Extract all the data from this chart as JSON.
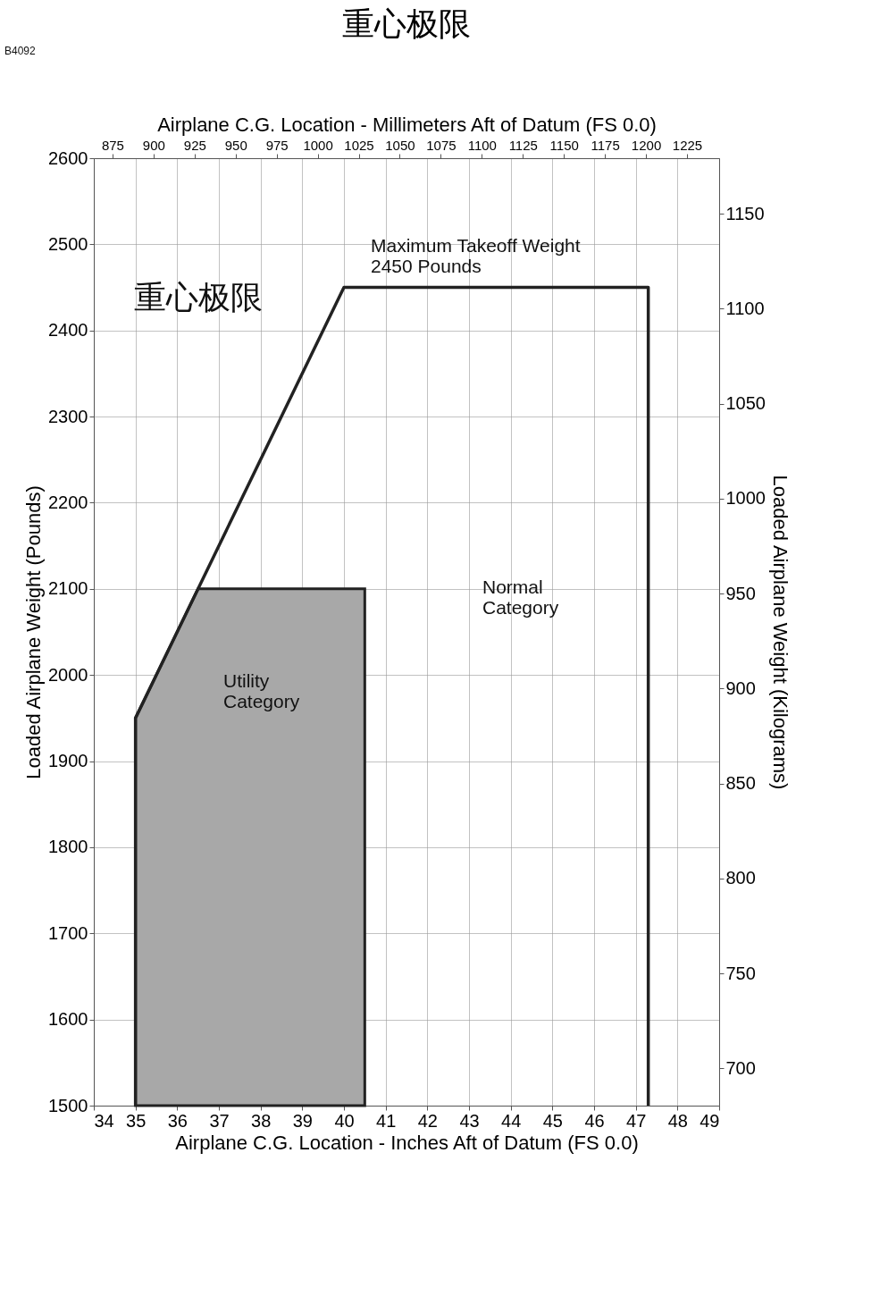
{
  "chart_data": {
    "type": "line",
    "title": "重心极限",
    "xlabel": "Airplane C.G. Location - Inches Aft of Datum (FS 0.0)",
    "ylabel": "Loaded Airplane Weight (Pounds)",
    "x2label": "Airplane C.G. Location - Millimeters Aft of Datum (FS 0.0)",
    "y2label": "Loaded Airplane Weight (Kilograms)",
    "xlim": [
      34,
      49
    ],
    "xticks": [
      34,
      35,
      36,
      37,
      38,
      39,
      40,
      41,
      42,
      43,
      44,
      45,
      46,
      47,
      48,
      49
    ],
    "ylim": [
      1500,
      2600
    ],
    "yticks": [
      1500,
      1600,
      1700,
      1800,
      1900,
      2000,
      2100,
      2200,
      2300,
      2400,
      2500,
      2600
    ],
    "x2lim": [
      863.6,
      1244.6
    ],
    "x2ticks": [
      875,
      900,
      925,
      950,
      975,
      1000,
      1025,
      1050,
      1075,
      1100,
      1125,
      1150,
      1175,
      1200,
      1225
    ],
    "y2lim": [
      680.4,
      1179.3
    ],
    "y2ticks": [
      700,
      750,
      800,
      850,
      900,
      950,
      1000,
      1050,
      1100,
      1150
    ],
    "grid": true,
    "marker": "none",
    "line_style": "solid",
    "series": [
      {
        "type": "area",
        "color": "#a8a8a8",
        "x": [
          35,
          36.5,
          40.5
        ],
        "values": [
          1950,
          2100,
          2100
        ]
      },
      {
        "color": "#222222",
        "x": [
          35,
          35,
          40,
          47.3,
          47.3
        ],
        "values": [
          1500,
          1950,
          2450,
          2450,
          1500
        ]
      }
    ],
    "annotations": [
      "B4092",
      "重心极限",
      "Maximum Takeoff Weight\n2450 Pounds",
      "Normal\nCategory",
      "Utility\nCategory"
    ]
  }
}
